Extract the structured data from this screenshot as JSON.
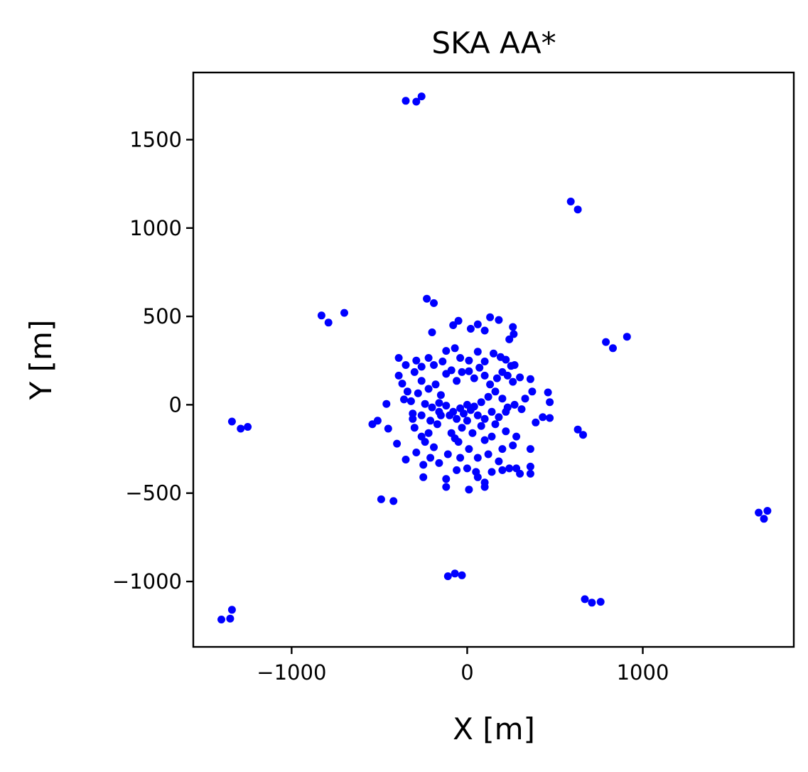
{
  "chart_data": {
    "type": "scatter",
    "title": "SKA AA*",
    "xlabel": "X [m]",
    "ylabel": "Y [m]",
    "xlim": [
      -1560,
      1860
    ],
    "ylim": [
      -1370,
      1880
    ],
    "xticks": [
      -1000,
      0,
      1000
    ],
    "xtick_labels": [
      "−1000",
      "0",
      "1000"
    ],
    "yticks": [
      -1000,
      -500,
      0,
      500,
      1000,
      1500
    ],
    "ytick_labels": [
      "−1000",
      "−500",
      "0",
      "500",
      "1000",
      "1500"
    ],
    "grid": false,
    "legend": "none",
    "marker_color": "#0000ff",
    "series": [
      {
        "points": [
          [
            -350,
            1720
          ],
          [
            -290,
            1715
          ],
          [
            -260,
            1745
          ],
          [
            590,
            1150
          ],
          [
            630,
            1105
          ],
          [
            -830,
            505
          ],
          [
            -790,
            465
          ],
          [
            -700,
            520
          ],
          [
            790,
            355
          ],
          [
            830,
            320
          ],
          [
            910,
            385
          ],
          [
            -1340,
            -95
          ],
          [
            -1290,
            -135
          ],
          [
            -1250,
            -125
          ],
          [
            630,
            -140
          ],
          [
            660,
            -170
          ],
          [
            -490,
            -535
          ],
          [
            -420,
            -545
          ],
          [
            1660,
            -610
          ],
          [
            1690,
            -645
          ],
          [
            1710,
            -600
          ],
          [
            -110,
            -970
          ],
          [
            -70,
            -955
          ],
          [
            -30,
            -965
          ],
          [
            670,
            -1100
          ],
          [
            710,
            -1120
          ],
          [
            760,
            -1115
          ],
          [
            -1400,
            -1215
          ],
          [
            -1350,
            -1210
          ],
          [
            -1340,
            -1160
          ],
          [
            -230,
            600
          ],
          [
            -190,
            575
          ],
          [
            -200,
            410
          ],
          [
            -80,
            450
          ],
          [
            -50,
            475
          ],
          [
            20,
            430
          ],
          [
            60,
            455
          ],
          [
            100,
            420
          ],
          [
            130,
            495
          ],
          [
            180,
            480
          ],
          [
            260,
            440
          ],
          [
            265,
            400
          ],
          [
            240,
            370
          ],
          [
            -390,
            265
          ],
          [
            -350,
            225
          ],
          [
            -290,
            250
          ],
          [
            -260,
            215
          ],
          [
            -220,
            265
          ],
          [
            -190,
            225
          ],
          [
            -140,
            245
          ],
          [
            -120,
            305
          ],
          [
            -70,
            320
          ],
          [
            -40,
            265
          ],
          [
            10,
            250
          ],
          [
            60,
            300
          ],
          [
            100,
            245
          ],
          [
            150,
            290
          ],
          [
            190,
            270
          ],
          [
            220,
            255
          ],
          [
            250,
            220
          ],
          [
            270,
            225
          ],
          [
            -390,
            165
          ],
          [
            -370,
            120
          ],
          [
            -340,
            75
          ],
          [
            -300,
            185
          ],
          [
            -260,
            135
          ],
          [
            -220,
            90
          ],
          [
            -180,
            115
          ],
          [
            -150,
            55
          ],
          [
            -120,
            175
          ],
          [
            -90,
            195
          ],
          [
            -60,
            135
          ],
          [
            -30,
            185
          ],
          [
            10,
            190
          ],
          [
            40,
            150
          ],
          [
            70,
            210
          ],
          [
            100,
            165
          ],
          [
            130,
            115
          ],
          [
            170,
            150
          ],
          [
            200,
            185
          ],
          [
            230,
            165
          ],
          [
            260,
            130
          ],
          [
            300,
            155
          ],
          [
            330,
            35
          ],
          [
            360,
            145
          ],
          [
            370,
            75
          ],
          [
            460,
            70
          ],
          [
            470,
            15
          ],
          [
            -360,
            30
          ],
          [
            -320,
            20
          ],
          [
            -280,
            65
          ],
          [
            -240,
            5
          ],
          [
            -200,
            -15
          ],
          [
            -160,
            10
          ],
          [
            -120,
            -5
          ],
          [
            -80,
            -40
          ],
          [
            -40,
            -20
          ],
          [
            0,
            0
          ],
          [
            40,
            -10
          ],
          [
            80,
            15
          ],
          [
            120,
            45
          ],
          [
            160,
            75
          ],
          [
            200,
            35
          ],
          [
            230,
            -15
          ],
          [
            270,
            0
          ],
          [
            310,
            -25
          ],
          [
            -460,
            5
          ],
          [
            -540,
            -110
          ],
          [
            -510,
            -90
          ],
          [
            -450,
            -135
          ],
          [
            -400,
            -220
          ],
          [
            -350,
            -310
          ],
          [
            -310,
            -80
          ],
          [
            -300,
            -130
          ],
          [
            -290,
            -270
          ],
          [
            -260,
            -180
          ],
          [
            -240,
            -210
          ],
          [
            -220,
            -160
          ],
          [
            -190,
            -240
          ],
          [
            -170,
            -110
          ],
          [
            -150,
            -60
          ],
          [
            -120,
            -420
          ],
          [
            -110,
            -280
          ],
          [
            -90,
            -160
          ],
          [
            -70,
            -190
          ],
          [
            -50,
            -210
          ],
          [
            -30,
            -130
          ],
          [
            0,
            -90
          ],
          [
            10,
            -250
          ],
          [
            30,
            -160
          ],
          [
            50,
            -380
          ],
          [
            60,
            -300
          ],
          [
            80,
            -120
          ],
          [
            100,
            -200
          ],
          [
            120,
            -280
          ],
          [
            140,
            -180
          ],
          [
            160,
            -110
          ],
          [
            180,
            -320
          ],
          [
            200,
            -250
          ],
          [
            220,
            -150
          ],
          [
            240,
            -360
          ],
          [
            260,
            -230
          ],
          [
            280,
            -180
          ],
          [
            300,
            -390
          ],
          [
            360,
            -390
          ],
          [
            360,
            -350
          ],
          [
            360,
            -250
          ],
          [
            390,
            -100
          ],
          [
            430,
            -70
          ],
          [
            470,
            -75
          ],
          [
            -310,
            -50
          ],
          [
            -260,
            -60
          ],
          [
            -210,
            -90
          ],
          [
            -160,
            -40
          ],
          [
            -100,
            -60
          ],
          [
            -60,
            -80
          ],
          [
            -20,
            -50
          ],
          [
            20,
            -30
          ],
          [
            60,
            -60
          ],
          [
            100,
            -80
          ],
          [
            140,
            -40
          ],
          [
            180,
            -70
          ],
          [
            220,
            -40
          ],
          [
            -250,
            -410
          ],
          [
            -250,
            -340
          ],
          [
            -120,
            -465
          ],
          [
            10,
            -480
          ],
          [
            60,
            -410
          ],
          [
            100,
            -465
          ],
          [
            100,
            -440
          ],
          [
            -60,
            -370
          ],
          [
            0,
            -360
          ],
          [
            -40,
            -300
          ],
          [
            -160,
            -330
          ],
          [
            -210,
            -300
          ],
          [
            140,
            -380
          ],
          [
            200,
            -370
          ],
          [
            280,
            -360
          ]
        ]
      }
    ]
  }
}
